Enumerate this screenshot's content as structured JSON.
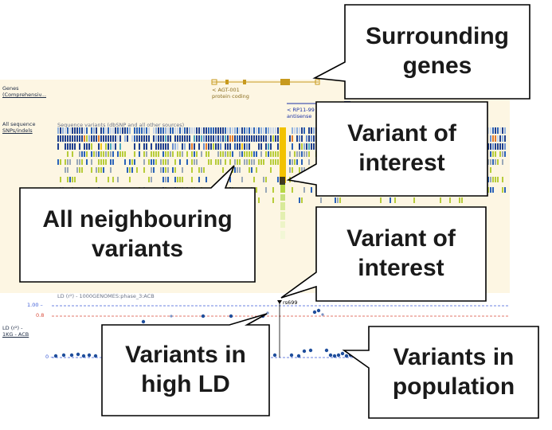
{
  "browser": {
    "genes_label_line1": "Genes",
    "genes_label_line2": "(Comprehensiv...",
    "gene1_name": "< AGT-001",
    "gene1_type": "protein coding",
    "gene2_name": "< RP11-99",
    "gene2_type": "antisense",
    "variants_label_line1": "All sequence",
    "variants_label_line2": "SNPs/indels",
    "variants_legend": "Sequence variants (dbSNP and all other sources)",
    "ld_header": "LD (r²) - 1000GENOMES:phase_3:ACB",
    "ld_track_label_line1": "LD (r²) -",
    "ld_track_label_line2": "1KG - ACB",
    "ld_tick_top": "1.00 –",
    "ld_tick_mid": "0.8",
    "ld_tick_bottom": "0 –",
    "snp_id": "rs699"
  },
  "callouts": {
    "surrounding_genes": "Surrounding\ngenes",
    "variant_of_interest_upper": "Variant of\ninterest",
    "all_neighbouring": "All neighbouring\nvariants",
    "variant_of_interest_lower": "Variant of\ninterest",
    "variants_high_ld": "Variants in\nhigh LD",
    "variants_population": "Variants in\npopulation"
  },
  "colors": {
    "callout_border": "#000000",
    "callout_fill": "#ffffff",
    "panel_bg": "#fdf6e3",
    "gene_line": "#c89a1e",
    "ld_point": "#1f4e9c",
    "ld_top_line": "#3b5bd6",
    "ld_threshold_line": "#d94b3a"
  }
}
